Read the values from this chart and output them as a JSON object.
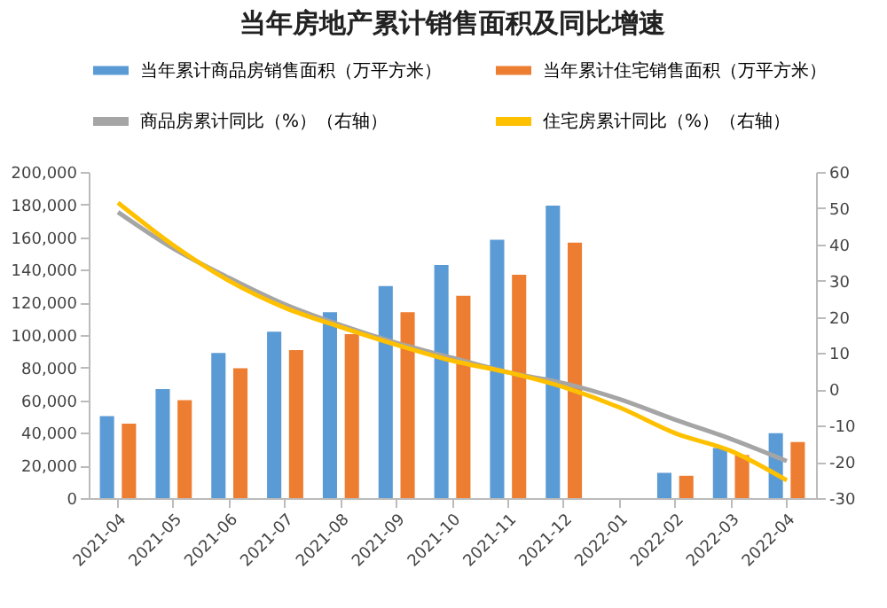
{
  "chart_data": {
    "type": "bar",
    "title": "当年房地产累计销售面积及同比增速",
    "categories": [
      "2021-04",
      "2021-05",
      "2021-06",
      "2021-07",
      "2021-08",
      "2021-09",
      "2021-10",
      "2021-11",
      "2021-12",
      "2022-01",
      "2022-02",
      "2022-03",
      "2022-04"
    ],
    "series": [
      {
        "name": "当年累计商品房销售面积（万平方米）",
        "color": "#5b9bd5",
        "values": [
          50300,
          66900,
          89000,
          102000,
          114000,
          130000,
          143000,
          158400,
          179400,
          null,
          15500,
          30700,
          39800
        ]
      },
      {
        "name": "当年累计住宅销售面积（万平方米）",
        "color": "#ed7d31",
        "values": [
          45600,
          60000,
          79600,
          90800,
          100500,
          114000,
          124000,
          137000,
          156600,
          null,
          13700,
          26400,
          34400
        ]
      },
      {
        "name": "商品房累计同比（%）（右轴）",
        "type": "line",
        "axis": "y2",
        "color": "#a5a5a5",
        "values": [
          48.9,
          38.8,
          30.7,
          23.4,
          17.7,
          12.8,
          8.7,
          4.7,
          1.7,
          -2.7,
          -8.4,
          -13.7,
          -19.8
        ]
      },
      {
        "name": "住宅房累计同比（%）（右轴）",
        "type": "line",
        "axis": "y2",
        "color": "#ffc000",
        "values": [
          51.5,
          39.7,
          29.9,
          22.5,
          17.2,
          12.3,
          7.9,
          4.7,
          0.6,
          -5,
          -12.1,
          -17,
          -25.1
        ]
      }
    ],
    "ylim": [
      0,
      200000
    ],
    "yticks": [
      0,
      {
        "value": 20000,
        "label": "20,000"
      },
      {
        "value": 40000,
        "label": "40,000"
      },
      {
        "value": 60000,
        "label": "60,000"
      },
      {
        "value": 80000,
        "label": "80,000"
      },
      {
        "value": 100000,
        "label": "100,000"
      },
      {
        "value": 120000,
        "label": "120,000"
      },
      {
        "value": 140000,
        "label": "140,000"
      },
      {
        "value": 160000,
        "label": "160,000"
      },
      {
        "value": 180000,
        "label": "180,000"
      },
      {
        "value": 200000,
        "label": "200,000"
      }
    ],
    "y2lim": [
      -30,
      60
    ],
    "y2ticks": [
      -30,
      -20,
      -10,
      0,
      10,
      20,
      30,
      40,
      50,
      60
    ],
    "legend": "top"
  }
}
